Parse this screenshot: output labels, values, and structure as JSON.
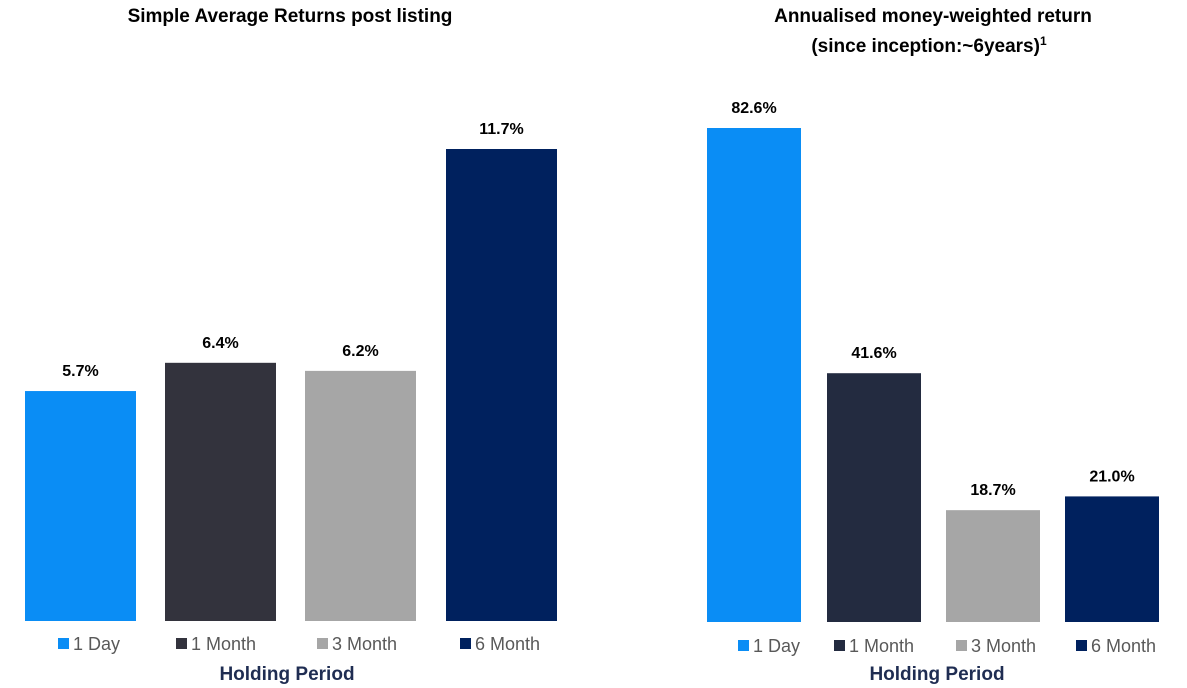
{
  "chart_data": [
    {
      "type": "bar",
      "title": "Simple Average Returns post listing",
      "subtitle": "",
      "xlabel": "Holding Period",
      "ylabel": "",
      "categories": [
        "1 Day",
        "1 Month",
        "3 Month",
        "6 Month"
      ],
      "values": [
        5.7,
        6.4,
        6.2,
        11.7
      ],
      "value_labels": [
        "5.7%",
        "6.4%",
        "6.2%",
        "11.7%"
      ],
      "unit": "%",
      "ylim": [
        0,
        11.7
      ],
      "colors": [
        "#0a8df5",
        "#33333d",
        "#a6a6a6",
        "#00215e"
      ],
      "legend": [
        "1 Day",
        "1 Month",
        "3 Month",
        "6 Month"
      ],
      "legend_position": "bottom",
      "grid": false
    },
    {
      "type": "bar",
      "title": "Annualised money-weighted return",
      "subtitle": "(since inception:~6years)",
      "subtitle_superscript": "1",
      "xlabel": "Holding Period",
      "ylabel": "",
      "categories": [
        "1 Day",
        "1 Month",
        "3 Month",
        "6 Month"
      ],
      "values": [
        82.6,
        41.6,
        18.7,
        21.0
      ],
      "value_labels": [
        "82.6%",
        "41.6%",
        "18.7%",
        "21.0%"
      ],
      "unit": "%",
      "ylim": [
        0,
        82.6
      ],
      "colors": [
        "#0a8df5",
        "#232b40",
        "#a6a6a6",
        "#00215e"
      ],
      "legend": [
        "1 Day",
        "1 Month",
        "3 Month",
        "6 Month"
      ],
      "legend_position": "bottom",
      "grid": false
    }
  ]
}
